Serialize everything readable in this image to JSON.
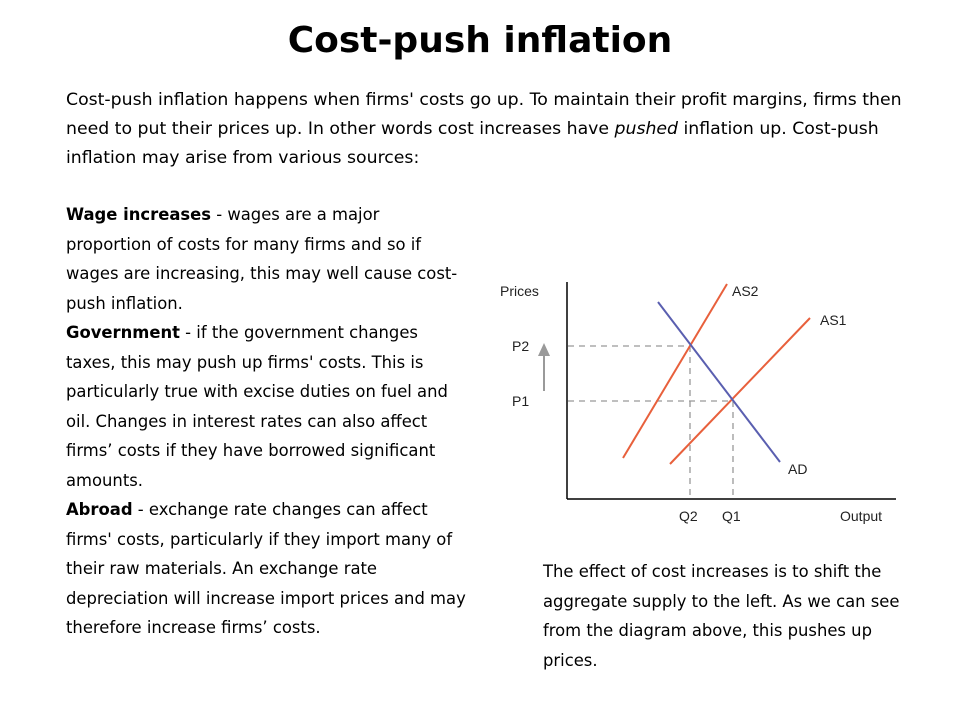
{
  "title": "Cost-push inflation",
  "intro": {
    "before_em": "Cost-push inflation happens when firms' costs go up. To maintain their profit margins, firms then need to put their prices up. In other words cost increases have ",
    "em": "pushed",
    "after_em": " inflation up. Cost-push inflation may arise from various sources:"
  },
  "sources": [
    {
      "term": "Wage increases",
      "text": " - wages are a major proportion of costs for many firms and so if wages are increasing, this may well cause cost-push inflation."
    },
    {
      "term": "Government",
      "text": " - if the government changes taxes, this may push up firms' costs. This is particularly true with excise duties on fuel and oil. Changes in interest rates can also affect firms’ costs if they have borrowed significant amounts."
    },
    {
      "term": "Abroad",
      "text": " - exchange rate changes can affect firms' costs, particularly if they import many of their raw materials. An exchange rate depreciation will increase import prices and may therefore increase firms’ costs."
    }
  ],
  "diagram": {
    "y_axis_label": "Prices",
    "x_axis_label": "Output",
    "price_labels": {
      "p2": "P2",
      "p1": "P1"
    },
    "quantity_labels": {
      "q2": "Q2",
      "q1": "Q1"
    },
    "curve_labels": {
      "as1": "AS1",
      "as2": "AS2",
      "ad": "AD"
    },
    "colors": {
      "supply": "#e8603c",
      "demand": "#5a5fb0",
      "axis": "#000000",
      "guide": "#999999",
      "arrow": "#9a9a9a"
    }
  },
  "caption": "The effect of cost increases is to shift the aggregate supply to the left. As we can see from the diagram above, this pushes up prices."
}
